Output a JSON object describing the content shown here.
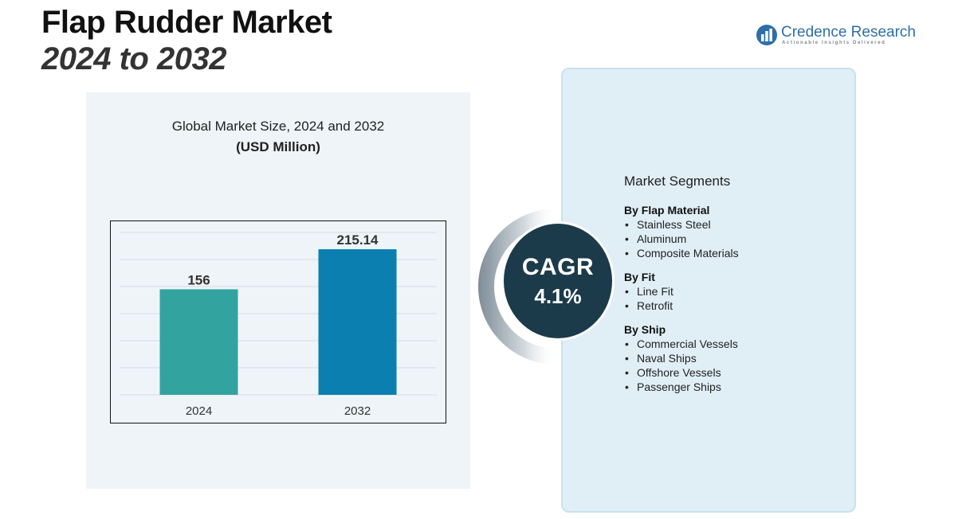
{
  "header": {
    "title_line1": "Flap Rudder Market",
    "title_line2": "2024 to 2032"
  },
  "logo": {
    "name": "Credence Research",
    "tagline": "Actionable Insights Delivered",
    "icon": "bar-chart-logo-icon"
  },
  "chart_data": {
    "type": "bar",
    "title": "Global Market Size, 2024 and 2032",
    "subtitle": "(USD Million)",
    "categories": [
      "2024",
      "2032"
    ],
    "values": [
      156,
      215.14
    ],
    "value_labels": [
      "156",
      "215.14"
    ],
    "colors": [
      "#33a3a0",
      "#0a7fb0"
    ],
    "ylim": [
      0,
      240
    ],
    "grid": true,
    "xlabel": "",
    "ylabel": ""
  },
  "cagr": {
    "label": "CAGR",
    "value": "4.1%"
  },
  "segments": {
    "heading": "Market Segments",
    "groups": [
      {
        "title": "By Flap Material",
        "items": [
          "Stainless Steel",
          "Aluminum",
          "Composite Materials"
        ]
      },
      {
        "title": "By Fit",
        "items": [
          "Line Fit",
          "Retrofit"
        ]
      },
      {
        "title": "By Ship",
        "items": [
          "Commercial Vessels",
          "Naval Ships",
          "Offshore Vessels",
          "Passenger Ships"
        ]
      }
    ]
  }
}
